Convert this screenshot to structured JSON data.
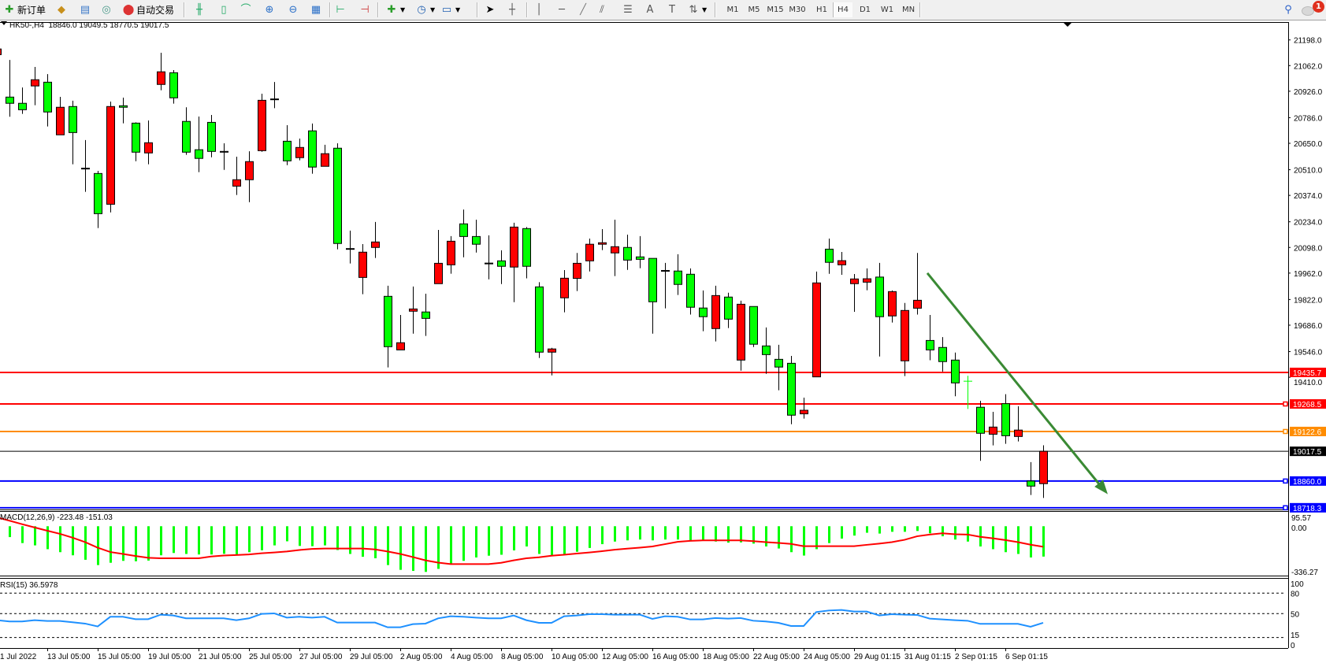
{
  "toolbar": {
    "new_order_label": "新订单",
    "auto_trading_label": "自动交易",
    "timeframes": [
      "M1",
      "M5",
      "M15",
      "M30",
      "H1",
      "H4",
      "D1",
      "W1",
      "MN"
    ],
    "active_timeframe": "H4",
    "notification_count": "1",
    "icons": [
      "new-order-icon",
      "market-watch-icon",
      "navigator-icon",
      "signals-icon",
      "auto-trading-icon",
      "bar-chart-icon",
      "candlestick-icon",
      "line-chart-icon",
      "zoom-in-icon",
      "zoom-out-icon",
      "tile-windows-icon",
      "chart-shift-icon",
      "autoscroll-icon",
      "indicators-icon",
      "periods-icon",
      "templates-icon",
      "cursor-icon",
      "crosshair-icon",
      "vertical-line-icon",
      "horizontal-line-icon",
      "trendline-icon",
      "equidistant-channel-icon",
      "fibonacci-icon",
      "text-icon",
      "text-label-icon",
      "arrows-icon",
      "search-icon",
      "notification-icon"
    ]
  },
  "chart": {
    "header": "HK50-,H4  18846.0 19049.5 18770.5 19017.5",
    "price_ticks": [
      "21198.0",
      "21062.0",
      "20926.0",
      "20786.0",
      "20650.0",
      "20510.0",
      "20374.0",
      "20234.0",
      "20098.0",
      "19962.0",
      "19822.0",
      "19686.0",
      "19546.0",
      "19410.0"
    ],
    "up_color": "#ff0000",
    "down_color": "#00ff00",
    "candles": [
      [
        21120,
        21150,
        21115,
        21150
      ],
      [
        20895,
        21092,
        20791,
        20862
      ],
      [
        20862,
        20946,
        20806,
        20828
      ],
      [
        20954,
        21055,
        20852,
        20987
      ],
      [
        20974,
        21017,
        20739,
        20816
      ],
      [
        20695,
        20896,
        20695,
        20841
      ],
      [
        20845,
        20876,
        20539,
        20707
      ],
      [
        20516,
        20667,
        20393,
        20516
      ],
      [
        20490,
        20504,
        20201,
        20277
      ],
      [
        20327,
        20871,
        20284,
        20845
      ],
      [
        20849,
        20892,
        20756,
        20841
      ],
      [
        20757,
        20761,
        20555,
        20603
      ],
      [
        20599,
        20771,
        20539,
        20653
      ],
      [
        20962,
        21130,
        20931,
        21029
      ],
      [
        21024,
        21038,
        20860,
        20891
      ],
      [
        20766,
        20841,
        20589,
        20603
      ],
      [
        20616,
        20792,
        20497,
        20570
      ],
      [
        20761,
        20800,
        20576,
        20607
      ],
      [
        20605,
        20650,
        20509,
        20605
      ],
      [
        20423,
        20579,
        20376,
        20457
      ],
      [
        20457,
        20608,
        20338,
        20553
      ],
      [
        20611,
        20913,
        20605,
        20878
      ],
      [
        20883,
        20975,
        20836,
        20883
      ],
      [
        20661,
        20746,
        20534,
        20557
      ],
      [
        20574,
        20675,
        20560,
        20628
      ],
      [
        20716,
        20755,
        20489,
        20524
      ],
      [
        20528,
        20642,
        20528,
        20595
      ],
      [
        20624,
        20650,
        20088,
        20119
      ],
      [
        20090,
        20187,
        20013,
        20090
      ],
      [
        19939,
        20116,
        19850,
        20073
      ],
      [
        20098,
        20233,
        20042,
        20127
      ],
      [
        19839,
        19895,
        19462,
        19572
      ],
      [
        19555,
        19740,
        19555,
        19593
      ],
      [
        19760,
        19891,
        19641,
        19772
      ],
      [
        19756,
        19853,
        19629,
        19722
      ],
      [
        19906,
        20191,
        19906,
        20014
      ],
      [
        20006,
        20158,
        19959,
        20131
      ],
      [
        20223,
        20299,
        20046,
        20156
      ],
      [
        20156,
        20245,
        20071,
        20115
      ],
      [
        20013,
        20162,
        19929,
        20013
      ],
      [
        20027,
        20083,
        19904,
        19998
      ],
      [
        19994,
        20229,
        19808,
        20206
      ],
      [
        20198,
        20206,
        19934,
        19998
      ],
      [
        19889,
        19914,
        19512,
        19543
      ],
      [
        19543,
        19566,
        19420,
        19560
      ],
      [
        19831,
        19978,
        19754,
        19935
      ],
      [
        19934,
        20069,
        19867,
        20014
      ],
      [
        20027,
        20145,
        19971,
        20115
      ],
      [
        20115,
        20195,
        20084,
        20123
      ],
      [
        20069,
        20245,
        19946,
        20102
      ],
      [
        20098,
        20166,
        19979,
        20031
      ],
      [
        20048,
        20158,
        19988,
        20035
      ],
      [
        20040,
        20040,
        19641,
        19810
      ],
      [
        19974,
        20016,
        19775,
        19974
      ],
      [
        19973,
        20062,
        19846,
        19902
      ],
      [
        19956,
        19987,
        19742,
        19781
      ],
      [
        19777,
        19870,
        19654,
        19731
      ],
      [
        19668,
        19895,
        19600,
        19843
      ],
      [
        19835,
        19858,
        19671,
        19718
      ],
      [
        19501,
        19816,
        19445,
        19797
      ],
      [
        19785,
        19785,
        19570,
        19585
      ],
      [
        19576,
        19674,
        19428,
        19530
      ],
      [
        19505,
        19582,
        19341,
        19464
      ],
      [
        19484,
        19523,
        19161,
        19209
      ],
      [
        19216,
        19302,
        19191,
        19235
      ],
      [
        19412,
        19970,
        19412,
        19910
      ],
      [
        20089,
        20145,
        19958,
        20019
      ],
      [
        20006,
        20074,
        19953,
        20028
      ],
      [
        19906,
        19957,
        19757,
        19931
      ],
      [
        19914,
        19987,
        19871,
        19932
      ],
      [
        19941,
        20016,
        19520,
        19731
      ],
      [
        19735,
        19870,
        19700,
        19864
      ],
      [
        19497,
        19804,
        19416,
        19764
      ],
      [
        19776,
        20069,
        19742,
        19818
      ],
      [
        19605,
        19740,
        19500,
        19555
      ],
      [
        19568,
        19623,
        19440,
        19493
      ],
      [
        19501,
        19541,
        19309,
        19380
      ],
      [
        19389,
        19418,
        19242,
        19389,
        "#00ff00"
      ],
      [
        19251,
        19285,
        18967,
        19113
      ],
      [
        19108,
        19227,
        19049,
        19146
      ],
      [
        19270,
        19320,
        19057,
        19100
      ],
      [
        19096,
        19256,
        19070,
        19130
      ],
      [
        18860,
        18960,
        18786,
        18833
      ],
      [
        18846,
        19049.5,
        18770.5,
        19017.5
      ]
    ],
    "levels": [
      {
        "price": 19435.7,
        "label": "19435.7",
        "color": "#ff0000",
        "marker": false
      },
      {
        "price": 19268.5,
        "label": "19268.5",
        "color": "#ff0000",
        "marker": true
      },
      {
        "price": 19122.6,
        "label": "19122.6",
        "color": "#ff8c00",
        "marker": true
      },
      {
        "price": 19017.5,
        "label": "19017.5",
        "color": "#000000",
        "marker": false
      },
      {
        "price": 18860.0,
        "label": "18860.0",
        "color": "#0000ff",
        "marker": true
      },
      {
        "price": 18718.3,
        "label": "18718.3",
        "color": "#0000ff",
        "marker": true
      }
    ],
    "trend_arrow": {
      "color": "#3a8a34",
      "from_price": 19962,
      "to_price": 18790
    }
  },
  "macd": {
    "label": "MACD(12,26,9) -223.48 -151.03",
    "ticks": [
      "95.57",
      "0.00",
      "-336.27"
    ],
    "hist_color": "#00ff00",
    "signal_color": "#ff0000",
    "histogram": [
      null,
      -80,
      -124,
      -141,
      -169,
      -191,
      -214,
      -247,
      -286,
      -269,
      -255,
      -258,
      -253,
      -214,
      -197,
      -204,
      -208,
      -208,
      -203,
      -212,
      -191,
      -177,
      -141,
      -111,
      -145,
      -147,
      -141,
      -175,
      -204,
      -225,
      -236,
      -286,
      -321,
      -329,
      -336.27,
      -314,
      -275,
      -255,
      -230,
      -217,
      -210,
      -178,
      -149,
      -204,
      -217,
      -206,
      -188,
      -160,
      -132,
      -113,
      -104,
      -98,
      -104,
      -98,
      -98,
      -104,
      -106,
      -113,
      -121,
      -119,
      -128,
      -149,
      -164,
      -191,
      -216,
      -169,
      -124,
      -91,
      -69,
      -48,
      -54,
      -41,
      -41,
      -35,
      -52,
      -74,
      -98,
      -113,
      -149,
      -169,
      -191,
      -204,
      -230,
      -223.48
    ],
    "signal": [
      65,
      41,
      15,
      -9,
      -33,
      -56,
      -84,
      -117,
      -158,
      -190,
      -204,
      -219,
      -232,
      -236,
      -236,
      -236,
      -236,
      -223,
      -216,
      -212,
      -208,
      -199,
      -193,
      -186,
      -175,
      -167,
      -164,
      -164,
      -164,
      -164,
      -171,
      -186,
      -204,
      -227,
      -251,
      -268,
      -279,
      -279,
      -279,
      -279,
      -269,
      -251,
      -236,
      -229,
      -217,
      -210,
      -201,
      -193,
      -184,
      -173,
      -165,
      -158,
      -149,
      -132,
      -115,
      -108,
      -104,
      -104,
      -104,
      -104,
      -110,
      -117,
      -123,
      -130,
      -147,
      -147,
      -147,
      -147,
      -147,
      -137,
      -128,
      -117,
      -100,
      -74,
      -61,
      -52,
      -59,
      -61,
      -78,
      -89,
      -102,
      -117,
      -136,
      -151.03
    ]
  },
  "rsi": {
    "label": "RSI(15) 36.5978",
    "ticks": [
      "100",
      "80",
      "50",
      "15",
      "0"
    ],
    "line_color": "#1e90ff",
    "values": [
      40.4,
      38.5,
      38.5,
      40.4,
      39.2,
      39.2,
      37.3,
      35.4,
      31.2,
      45.4,
      45.4,
      41.9,
      41.9,
      48.5,
      47.3,
      43.1,
      43.1,
      43.1,
      43.1,
      40.4,
      43.1,
      49.6,
      50.4,
      44.2,
      45.4,
      44.2,
      45.4,
      36.9,
      36.9,
      36.9,
      36.9,
      30,
      30,
      34.6,
      35.4,
      43.1,
      46.2,
      45.4,
      44.2,
      43.1,
      43.1,
      47.3,
      40.4,
      36.5,
      36.5,
      46.2,
      47.3,
      49.2,
      49.2,
      48.5,
      48.5,
      48.5,
      42.3,
      46.2,
      45.4,
      41.5,
      41.5,
      43.5,
      42.7,
      43.5,
      39.6,
      38.5,
      36.5,
      31.9,
      31.9,
      52.3,
      54.6,
      55.4,
      53.1,
      53.1,
      47.3,
      49.2,
      48.5,
      48.1,
      42.7,
      41.5,
      40.4,
      39.6,
      35,
      35,
      35,
      35,
      30.8,
      36.5978
    ]
  },
  "time_axis": {
    "labels": [
      "1 Jul 2022",
      "13 Jul 05:00",
      "15 Jul 05:00",
      "19 Jul 05:00",
      "21 Jul 05:00",
      "25 Jul 05:00",
      "27 Jul 05:00",
      "29 Jul 05:00",
      "2 Aug 05:00",
      "4 Aug 05:00",
      "8 Aug 05:00",
      "10 Aug 05:00",
      "12 Aug 05:00",
      "16 Aug 05:00",
      "18 Aug 05:00",
      "22 Aug 05:00",
      "24 Aug 05:00",
      "29 Aug 01:15",
      "31 Aug 01:15",
      "2 Sep 01:15",
      "6 Sep 01:15"
    ]
  }
}
